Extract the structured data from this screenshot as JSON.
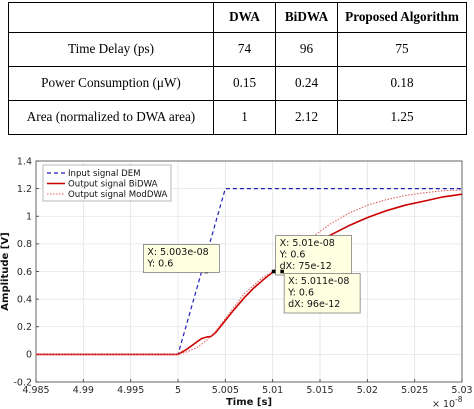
{
  "table": {
    "headers": [
      "",
      "DWA",
      "BiDWA",
      "Proposed Algorithm"
    ],
    "rows": [
      {
        "label": "Time Delay (ps)",
        "dwa": "74",
        "bidwa": "96",
        "proposed": "75"
      },
      {
        "label": "Power Consumption (μW)",
        "dwa": "0.15",
        "bidwa": "0.24",
        "proposed": "0.18"
      },
      {
        "label": "Area (normalized to DWA area)",
        "dwa": "1",
        "bidwa": "2.12",
        "proposed": "1.25"
      }
    ]
  },
  "chart_data": {
    "type": "line",
    "xlabel": "Time [s]",
    "ylabel": "Amplitude [V]",
    "xlim": [
      4.985,
      5.03
    ],
    "ylim": [
      -0.2,
      1.4
    ],
    "x_exponent_label": "× 10",
    "x_exponent_power": "-8",
    "x_ticks": [
      {
        "value": 4.985,
        "label": "4.985"
      },
      {
        "value": 4.99,
        "label": "4.99"
      },
      {
        "value": 4.995,
        "label": "4.995"
      },
      {
        "value": 5.0,
        "label": "5"
      },
      {
        "value": 5.005,
        "label": "5.005"
      },
      {
        "value": 5.01,
        "label": "5.01"
      },
      {
        "value": 5.015,
        "label": "5.015"
      },
      {
        "value": 5.02,
        "label": "5.02"
      },
      {
        "value": 5.025,
        "label": "5.025"
      },
      {
        "value": 5.03,
        "label": "5.03"
      }
    ],
    "y_ticks": [
      {
        "value": -0.2,
        "label": "-0.2"
      },
      {
        "value": 0,
        "label": "0"
      },
      {
        "value": 0.2,
        "label": "0.2"
      },
      {
        "value": 0.4,
        "label": "0.4"
      },
      {
        "value": 0.6,
        "label": "0.6"
      },
      {
        "value": 0.8,
        "label": "0.8"
      },
      {
        "value": 1.0,
        "label": "1"
      },
      {
        "value": 1.2,
        "label": "1.2"
      },
      {
        "value": 1.4,
        "label": "1.4"
      }
    ],
    "grid": true,
    "legend_position": "top-left",
    "series": [
      {
        "name": "Input signal DEM",
        "color": "#1f1fb8",
        "style": "dashed",
        "x": [
          4.985,
          5.0,
          5.005,
          5.03
        ],
        "y": [
          0,
          0,
          1.2,
          1.2
        ]
      },
      {
        "name": "Output signal BiDWA",
        "color": "#cc0000",
        "style": "solid",
        "x": [
          4.985,
          5.0,
          5.001,
          5.002,
          5.0025,
          5.003,
          5.0035,
          5.004,
          5.005,
          5.006,
          5.007,
          5.008,
          5.009,
          5.0101,
          5.011,
          5.012,
          5.013,
          5.014,
          5.015,
          5.016,
          5.018,
          5.02,
          5.022,
          5.024,
          5.026,
          5.028,
          5.03
        ],
        "y": [
          0,
          0,
          0.04,
          0.09,
          0.115,
          0.125,
          0.13,
          0.16,
          0.245,
          0.33,
          0.41,
          0.48,
          0.54,
          0.6,
          0.645,
          0.69,
          0.74,
          0.78,
          0.82,
          0.86,
          0.93,
          0.99,
          1.04,
          1.08,
          1.11,
          1.14,
          1.16
        ]
      },
      {
        "name": "Output signal ModDWA",
        "color": "#e06060",
        "style": "dotted",
        "x": [
          4.985,
          5.0,
          5.001,
          5.002,
          5.003,
          5.004,
          5.005,
          5.006,
          5.007,
          5.008,
          5.009,
          5.0101,
          5.011,
          5.012,
          5.013,
          5.014,
          5.015,
          5.016,
          5.018,
          5.02,
          5.022,
          5.024,
          5.026,
          5.028,
          5.03
        ],
        "y": [
          0,
          0,
          0.02,
          0.05,
          0.1,
          0.17,
          0.26,
          0.35,
          0.44,
          0.5,
          0.56,
          0.6,
          0.66,
          0.72,
          0.78,
          0.84,
          0.89,
          0.94,
          1.02,
          1.08,
          1.12,
          1.15,
          1.17,
          1.185,
          1.19
        ]
      }
    ],
    "datatips": [
      {
        "point_x": 5.003,
        "point_y": 0.6,
        "anchor": "left",
        "lines": [
          "X: 5.003e-08",
          "Y: 0.6"
        ]
      },
      {
        "point_x": 5.0101,
        "point_y": 0.6,
        "anchor": "above",
        "lines": [
          "X: 5.01e-08",
          "Y: 0.6",
          "dX: 75e-12"
        ]
      },
      {
        "point_x": 5.011,
        "point_y": 0.6,
        "anchor": "below-right",
        "lines": [
          "X: 5.011e-08",
          "Y: 0.6",
          "dX: 96e-12"
        ]
      }
    ]
  }
}
